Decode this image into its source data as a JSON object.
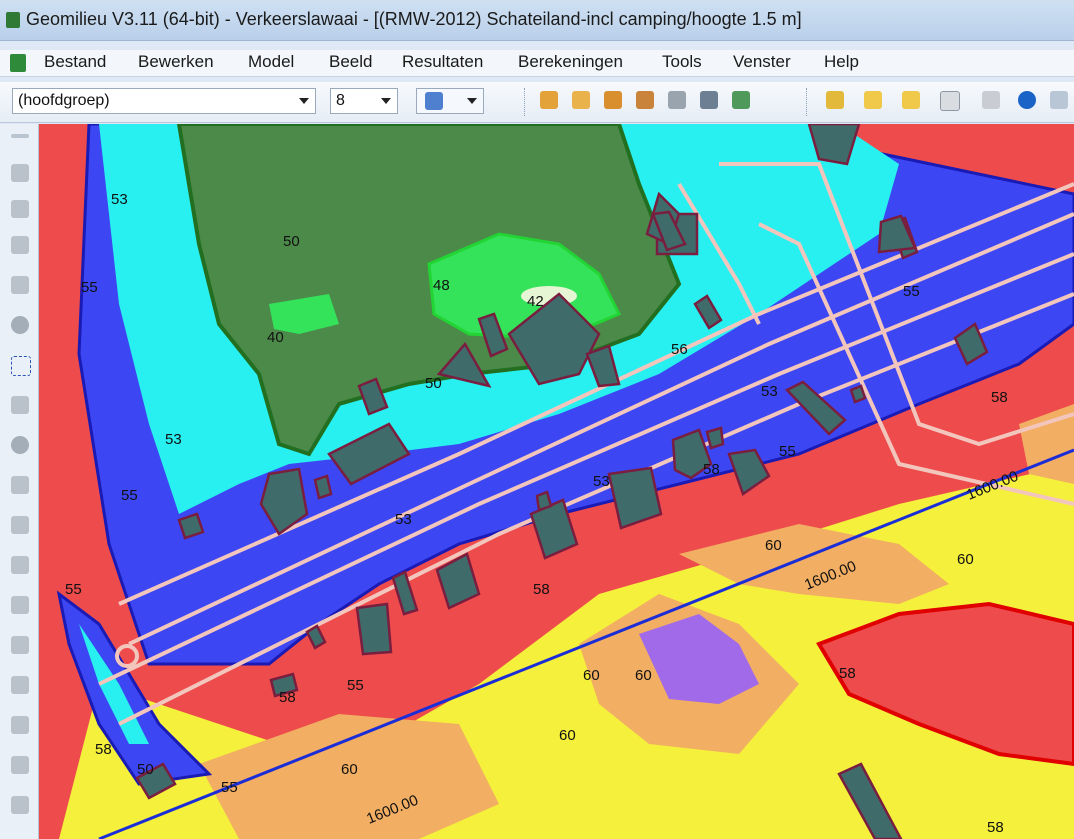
{
  "window": {
    "title": "Geomilieu V3.11 (64-bit) - Verkeerslawaai - [(RMW-2012)  Schateiland-incl camping/hoogte 1.5 m]"
  },
  "menu": [
    "Bestand",
    "Bewerken",
    "Model",
    "Beeld",
    "Resultaten",
    "Berekeningen",
    "Tools",
    "Venster",
    "Help"
  ],
  "toolbar": {
    "group_select": "(hoofdgroep)",
    "size_select": "8"
  },
  "map": {
    "contour_labels": [
      "53",
      "50",
      "55",
      "48",
      "42",
      "40",
      "50",
      "56",
      "53",
      "53",
      "55",
      "55",
      "53",
      "58",
      "58",
      "55",
      "60",
      "53",
      "58",
      "1600.00",
      "60",
      "1600.00",
      "55",
      "58",
      "55",
      "58",
      "60",
      "60",
      "60",
      "58",
      "1600.00",
      "50",
      "55",
      "60",
      "58"
    ],
    "colors": {
      "green_dark": "#4c8a4a",
      "green_light": "#35e35a",
      "cyan": "#29f0f0",
      "blue": "#3c46f3",
      "red": "#ee4b4c",
      "yellow": "#f4f03c",
      "orange": "#f2ae62",
      "purple": "#a06ae8",
      "building": "#3f6b6b",
      "road_outline": "#f3c6bd"
    }
  }
}
